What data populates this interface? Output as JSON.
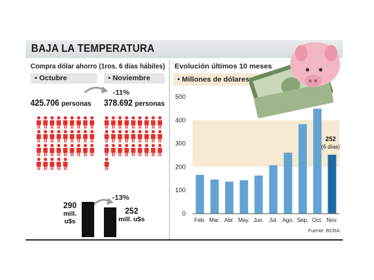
{
  "header": {
    "title": "BAJA LA TEMPERATURA"
  },
  "left": {
    "subtitle": "Compra dólar ahorro (1ros. 6 días hábiles)",
    "month_a": "• Octubre",
    "month_b": "• Noviembre",
    "persons_a": "425.706",
    "persons_b": "378.692",
    "persons_unit": "personas",
    "persons_change": "-11%",
    "amount_a": "290",
    "amount_b": "252",
    "amount_unit": "mill. u$s",
    "amount_change": "-13%",
    "figures_a": 32,
    "figures_b": 28
  },
  "right": {
    "subtitle": "Evolución últimos 10 meses",
    "tab_label": "• Millones de dólares",
    "source": "Fuente: BCRA"
  },
  "colors": {
    "figure": "#e4302a",
    "bar": "#62a3d4",
    "bar_last": "#1c6aa5",
    "band": "#f7ead3"
  },
  "chart_data": {
    "type": "bar",
    "categories": [
      "Feb.",
      "Mar.",
      "Abr.",
      "May.",
      "Jun.",
      "Jul.",
      "Ago.",
      "Sep.",
      "Oct.",
      "Nov."
    ],
    "values": [
      166,
      146,
      137,
      143,
      163,
      207,
      261,
      383,
      449,
      252
    ],
    "ylim": [
      0,
      500
    ],
    "yticks": [
      "0",
      "100",
      "200",
      "300",
      "400",
      "500"
    ],
    "annotation": {
      "value": "252",
      "note": "(6 días)"
    },
    "grid": false
  }
}
